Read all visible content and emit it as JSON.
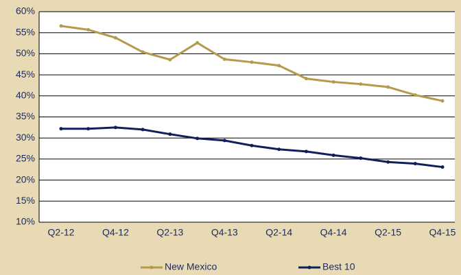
{
  "chart_data": {
    "type": "line",
    "categories": [
      "Q2-12",
      null,
      "Q4-12",
      null,
      "Q2-13",
      null,
      "Q4-13",
      null,
      "Q2-14",
      null,
      "Q4-14",
      null,
      "Q2-15",
      null,
      "Q4-15"
    ],
    "series": [
      {
        "name": "New Mexico",
        "color": "#b49a4c",
        "values": [
          56.6,
          55.7,
          53.8,
          50.4,
          48.6,
          52.6,
          48.7,
          48.0,
          47.2,
          44.1,
          43.3,
          42.8,
          42.1,
          40.2,
          38.8
        ]
      },
      {
        "name": "Best 10",
        "color": "#0f1f5a",
        "values": [
          32.2,
          32.2,
          32.5,
          32.0,
          30.9,
          29.9,
          29.4,
          28.2,
          27.3,
          26.8,
          25.9,
          25.2,
          24.3,
          23.9,
          23.1
        ]
      }
    ],
    "ylim": [
      10,
      60
    ],
    "yticks": [
      {
        "value": 10,
        "label": "10%"
      },
      {
        "value": 15,
        "label": "15%"
      },
      {
        "value": 20,
        "label": "20%"
      },
      {
        "value": 25,
        "label": "25%"
      },
      {
        "value": 30,
        "label": "30%"
      },
      {
        "value": 35,
        "label": "35%"
      },
      {
        "value": 40,
        "label": "40%"
      },
      {
        "value": 45,
        "label": "45%"
      },
      {
        "value": 50,
        "label": "50%"
      },
      {
        "value": 55,
        "label": "55%"
      },
      {
        "value": 60,
        "label": "60%"
      }
    ],
    "grid": true,
    "legend": "bottom"
  }
}
